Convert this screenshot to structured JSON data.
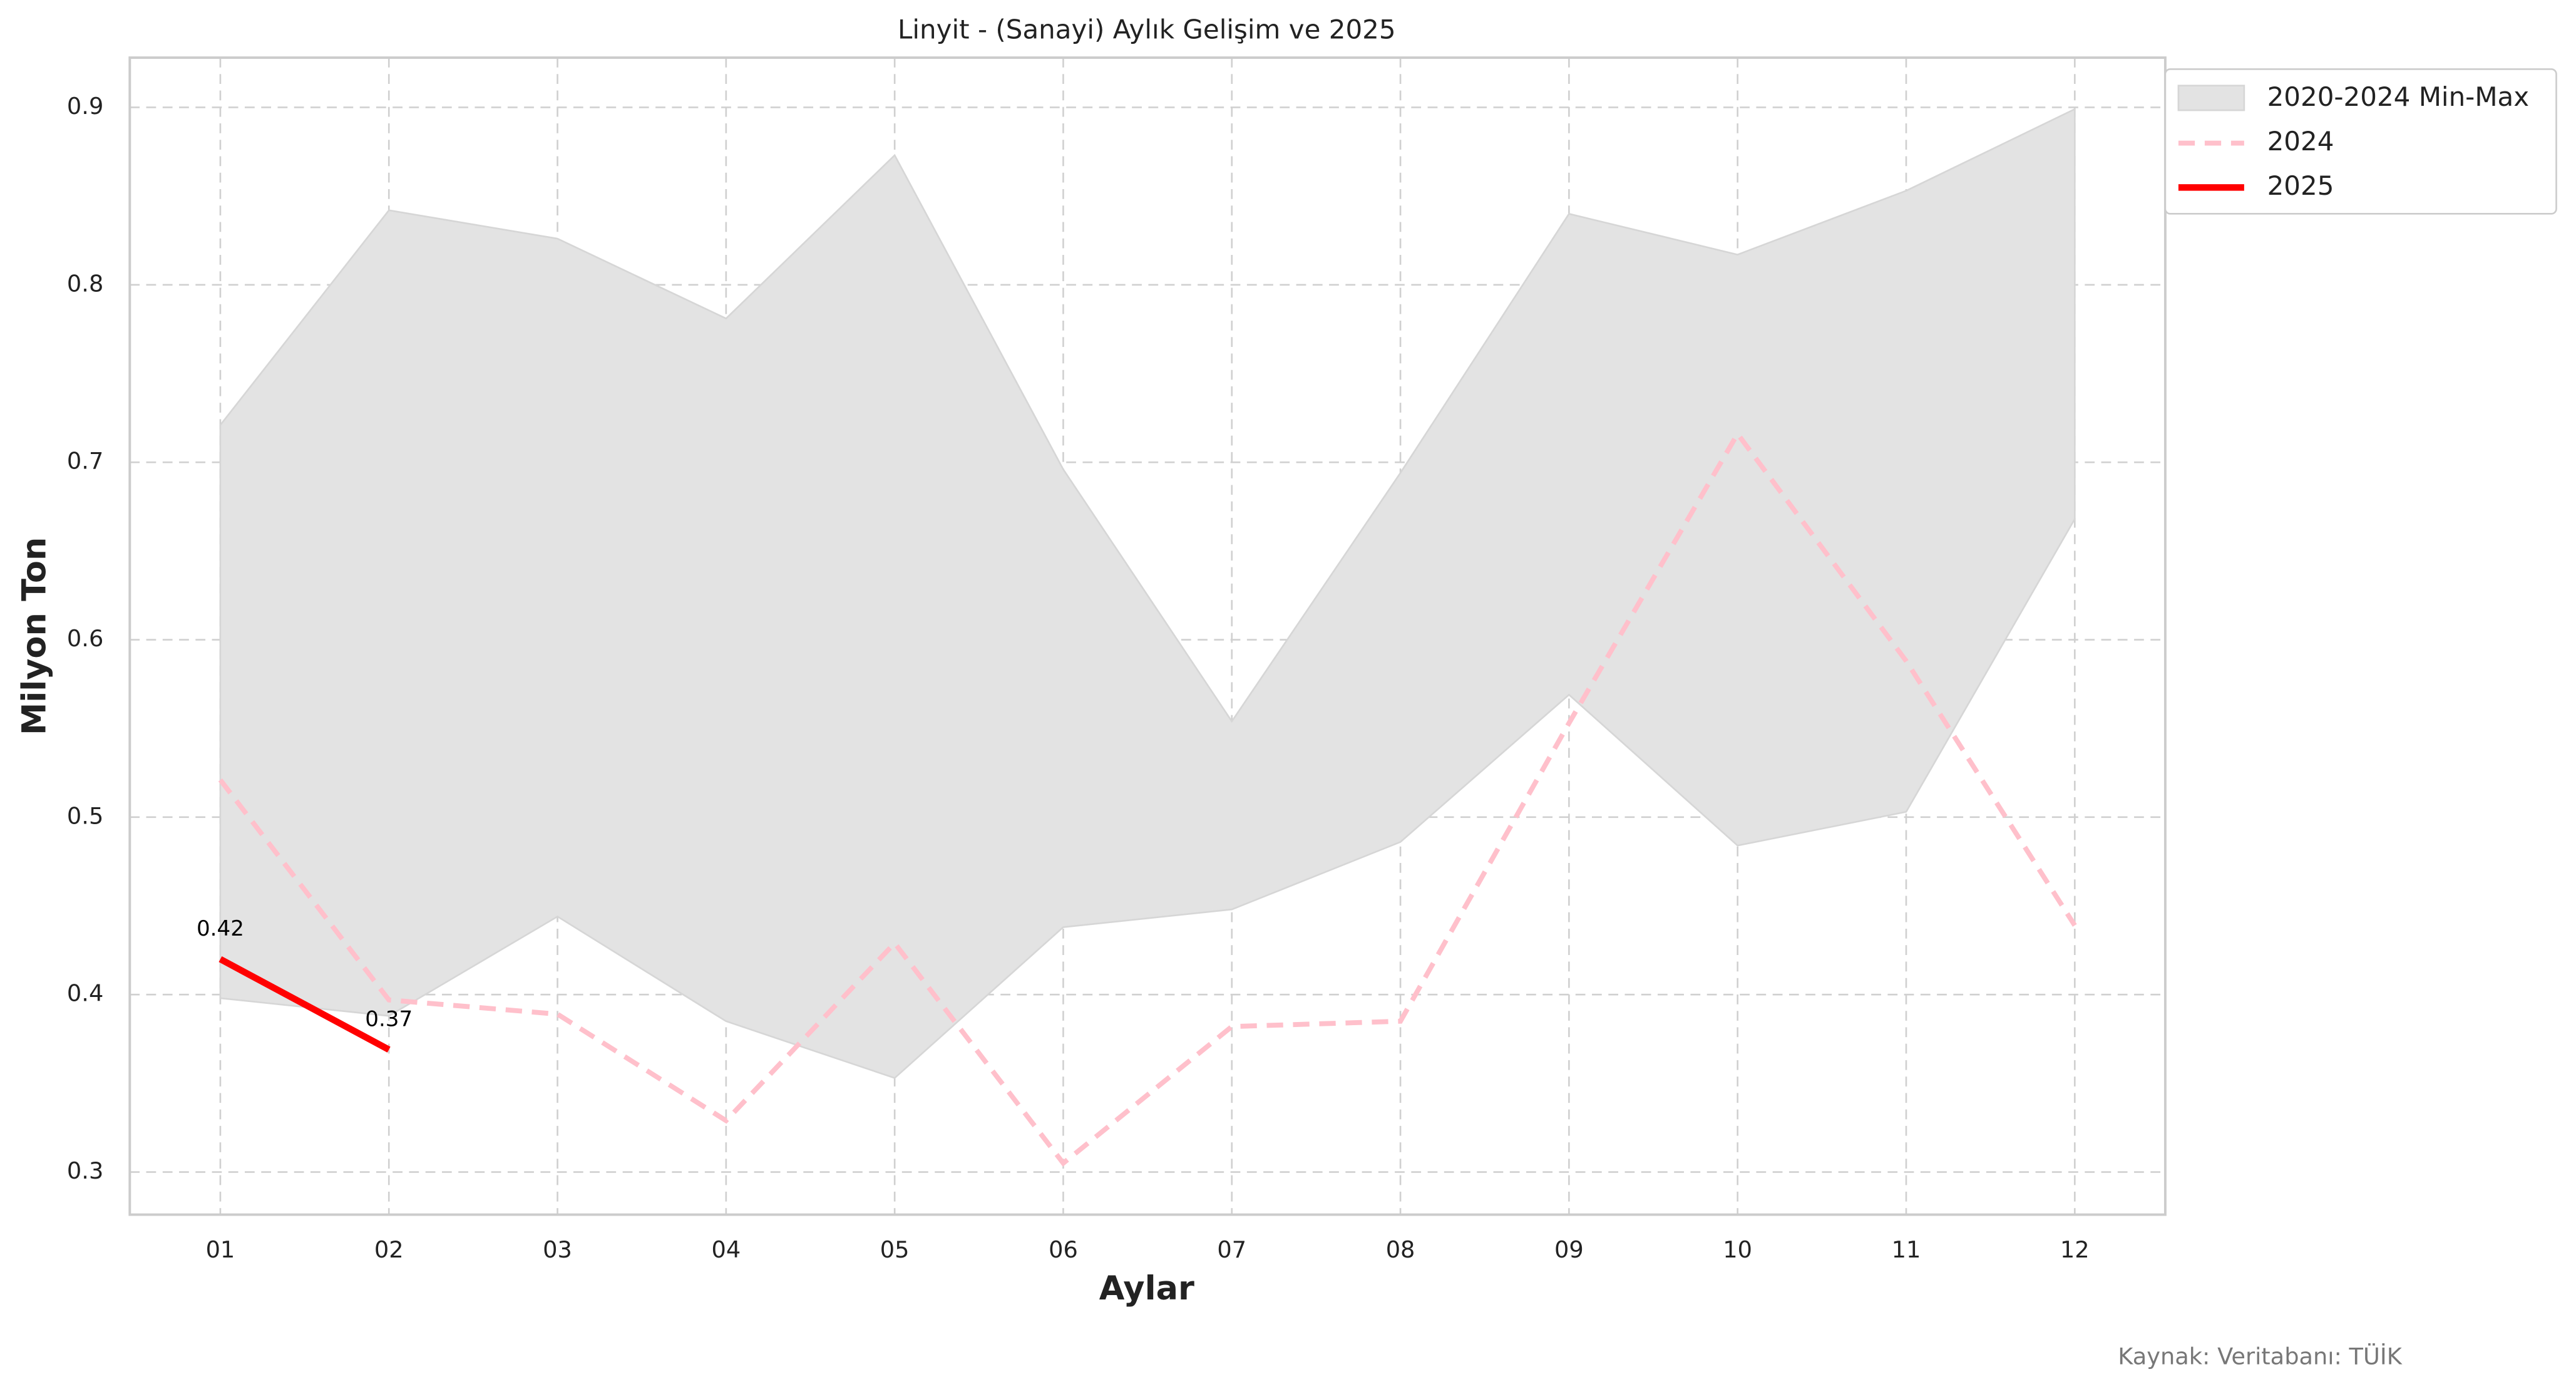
{
  "chart_data": {
    "type": "line",
    "title": "Linyit - (Sanayi) Aylık Gelişim ve 2025",
    "x_label": "Aylar",
    "y_label": "Milyon Ton",
    "source": "Kaynak: Veritabanı: TÜİK",
    "categories": [
      "01",
      "02",
      "03",
      "04",
      "05",
      "06",
      "07",
      "08",
      "09",
      "10",
      "11",
      "12"
    ],
    "band": {
      "name": "2020-2024 Min-Max",
      "color": "#e3e3e3",
      "lower": [
        0.398,
        0.388,
        0.444,
        0.385,
        0.353,
        0.438,
        0.448,
        0.486,
        0.569,
        0.484,
        0.503,
        0.668
      ],
      "upper": [
        0.721,
        0.842,
        0.826,
        0.781,
        0.873,
        0.696,
        0.554,
        0.694,
        0.84,
        0.817,
        0.853,
        0.899
      ]
    },
    "series": [
      {
        "name": "2024",
        "color": "#ffc0cb",
        "dashed": true,
        "values": [
          0.521,
          0.397,
          0.389,
          0.329,
          0.429,
          0.305,
          0.382,
          0.385,
          0.553,
          0.716,
          0.588,
          0.439
        ]
      },
      {
        "name": "2025",
        "color": "#ff0000",
        "dashed": false,
        "values": [
          0.42,
          0.369,
          null,
          null,
          null,
          null,
          null,
          null,
          null,
          null,
          null,
          null
        ],
        "value_labels": [
          "0.42",
          "0.37",
          null,
          null,
          null,
          null,
          null,
          null,
          null,
          null,
          null,
          null
        ]
      }
    ],
    "ylim": [
      0.276,
      0.928
    ],
    "yticks": [
      0.3,
      0.4,
      0.5,
      0.6,
      0.7,
      0.8,
      0.9
    ],
    "grid": true,
    "legend": "upper right outside"
  }
}
